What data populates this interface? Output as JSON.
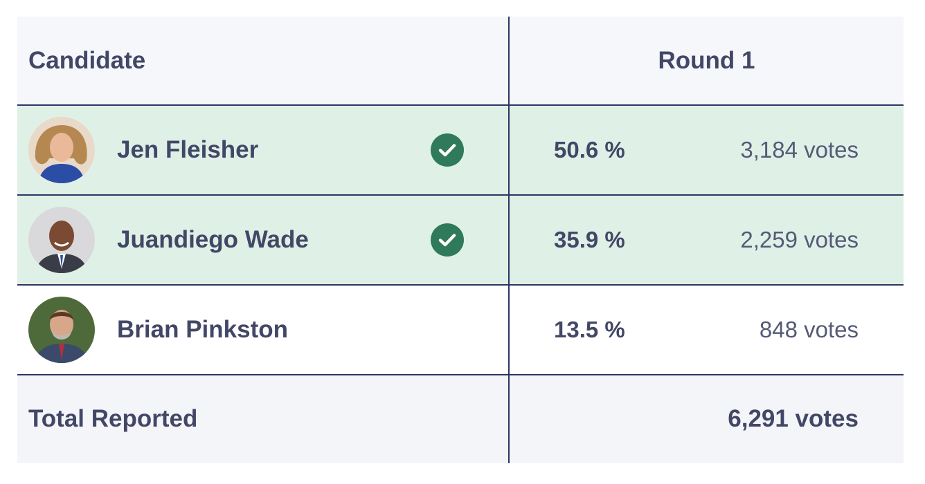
{
  "table": {
    "header": {
      "candidate_label": "Candidate",
      "round_label": "Round 1"
    },
    "candidates": [
      {
        "name": "Jen Fleisher",
        "percent": "50.6 %",
        "votes": "3,184 votes",
        "winner": true,
        "avatar_icon": "avatar-photo"
      },
      {
        "name": "Juandiego Wade",
        "percent": "35.9 %",
        "votes": "2,259 votes",
        "winner": true,
        "avatar_icon": "avatar-photo"
      },
      {
        "name": "Brian Pinkston",
        "percent": "13.5 %",
        "votes": "848 votes",
        "winner": false,
        "avatar_icon": "avatar-photo"
      }
    ],
    "total": {
      "label": "Total Reported",
      "votes": "6,291 votes"
    }
  },
  "colors": {
    "winner_row_bg": "#dff0e7",
    "check_icon": "#2f7a5a",
    "border": "#2f3563",
    "text": "#434766"
  }
}
